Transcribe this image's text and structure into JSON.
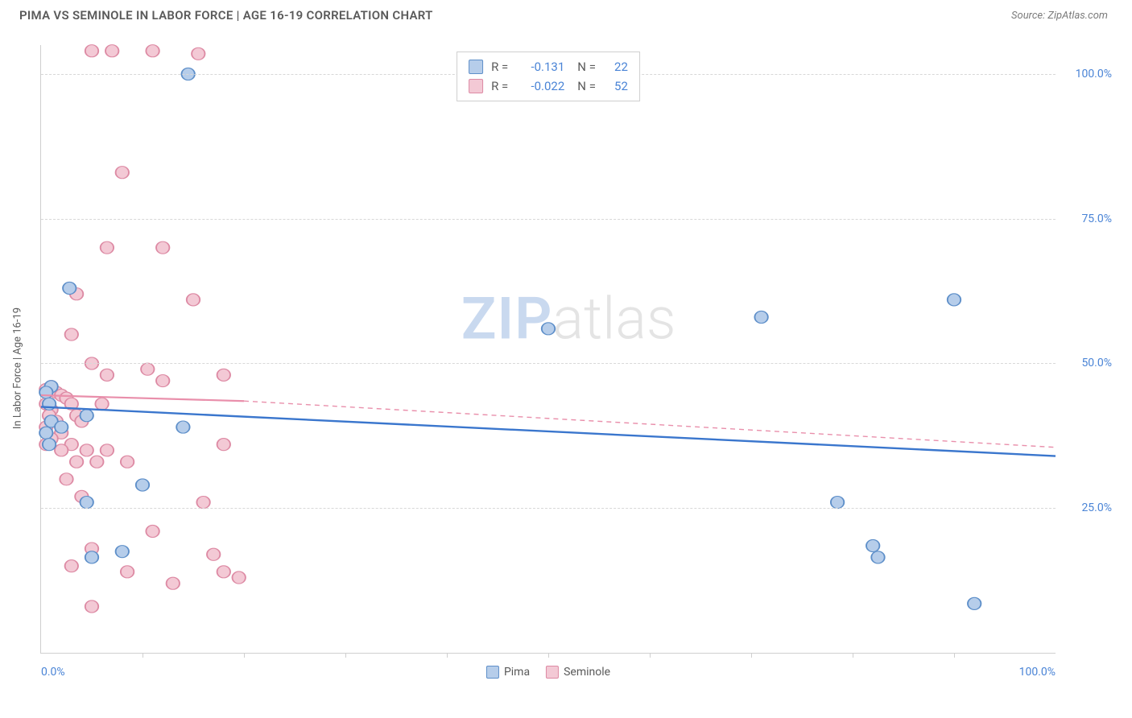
{
  "header": {
    "title": "PIMA VS SEMINOLE IN LABOR FORCE | AGE 16-19 CORRELATION CHART",
    "source": "Source: ZipAtlas.com"
  },
  "y_axis": {
    "label": "In Labor Force | Age 16-19"
  },
  "x_axis": {
    "min_label": "0.0%",
    "max_label": "100.0%"
  },
  "watermark": {
    "part1": "ZIP",
    "part2": "atlas"
  },
  "chart": {
    "type": "scatter",
    "xlim": [
      0,
      100
    ],
    "ylim": [
      0,
      105
    ],
    "y_ticks": [
      {
        "value": 25,
        "label": "25.0%"
      },
      {
        "value": 50,
        "label": "50.0%"
      },
      {
        "value": 75,
        "label": "75.0%"
      },
      {
        "value": 100,
        "label": "100.0%"
      }
    ],
    "x_tick_step": 10,
    "grid_color": "#d8d8d8",
    "background_color": "#ffffff",
    "marker_radius": 8,
    "marker_stroke_width": 1.2,
    "series": [
      {
        "name": "Pima",
        "fill_color": "#b6cdea",
        "stroke_color": "#5e8fc9",
        "stats": {
          "r_label": "R =",
          "r_value": "-0.131",
          "n_label": "N =",
          "n_value": "22"
        },
        "trend": {
          "color": "#3a76cd",
          "width": 2.4,
          "dash": "none",
          "x1": 0,
          "y1": 42.5,
          "x2": 100,
          "y2": 34
        },
        "points": [
          {
            "x": 14.5,
            "y": 100
          },
          {
            "x": 2.8,
            "y": 63
          },
          {
            "x": 1.0,
            "y": 46
          },
          {
            "x": 0.5,
            "y": 45
          },
          {
            "x": 0.8,
            "y": 43
          },
          {
            "x": 4.5,
            "y": 41
          },
          {
            "x": 1.0,
            "y": 40
          },
          {
            "x": 2.0,
            "y": 39
          },
          {
            "x": 0.5,
            "y": 38
          },
          {
            "x": 14.0,
            "y": 39
          },
          {
            "x": 0.8,
            "y": 36
          },
          {
            "x": 10.0,
            "y": 29
          },
          {
            "x": 4.5,
            "y": 26
          },
          {
            "x": 8.0,
            "y": 17.5
          },
          {
            "x": 5.0,
            "y": 16.5
          },
          {
            "x": 50.0,
            "y": 56
          },
          {
            "x": 71.0,
            "y": 58
          },
          {
            "x": 90.0,
            "y": 61
          },
          {
            "x": 78.5,
            "y": 26
          },
          {
            "x": 82.0,
            "y": 18.5
          },
          {
            "x": 82.5,
            "y": 16.5
          },
          {
            "x": 92.0,
            "y": 8.5
          }
        ]
      },
      {
        "name": "Seminole",
        "fill_color": "#f3c9d5",
        "stroke_color": "#dd8aa4",
        "stats": {
          "r_label": "R =",
          "r_value": "-0.022",
          "n_label": "N =",
          "n_value": "52"
        },
        "trend": {
          "color": "#e98fab",
          "width": 2.2,
          "dash": "none",
          "x1": 0,
          "y1": 44.5,
          "x2": 20,
          "y2": 43.5
        },
        "trend_ext": {
          "color": "#e98fab",
          "width": 1.4,
          "dash": "6,5",
          "x1": 20,
          "y1": 43.5,
          "x2": 100,
          "y2": 35.5
        },
        "points": [
          {
            "x": 5.0,
            "y": 104
          },
          {
            "x": 7.0,
            "y": 104
          },
          {
            "x": 11.0,
            "y": 104
          },
          {
            "x": 15.5,
            "y": 103.5
          },
          {
            "x": 8.0,
            "y": 83
          },
          {
            "x": 6.5,
            "y": 70
          },
          {
            "x": 12.0,
            "y": 70
          },
          {
            "x": 3.5,
            "y": 62
          },
          {
            "x": 15.0,
            "y": 61
          },
          {
            "x": 3.0,
            "y": 55
          },
          {
            "x": 5.0,
            "y": 50
          },
          {
            "x": 10.5,
            "y": 49
          },
          {
            "x": 6.5,
            "y": 48
          },
          {
            "x": 12.0,
            "y": 47
          },
          {
            "x": 18.0,
            "y": 48
          },
          {
            "x": 1.0,
            "y": 46
          },
          {
            "x": 1.5,
            "y": 45
          },
          {
            "x": 2.0,
            "y": 44.5
          },
          {
            "x": 2.5,
            "y": 44
          },
          {
            "x": 0.5,
            "y": 43
          },
          {
            "x": 3.0,
            "y": 43
          },
          {
            "x": 1.0,
            "y": 42
          },
          {
            "x": 6.0,
            "y": 43
          },
          {
            "x": 0.8,
            "y": 41
          },
          {
            "x": 3.5,
            "y": 41
          },
          {
            "x": 1.5,
            "y": 40
          },
          {
            "x": 0.5,
            "y": 39
          },
          {
            "x": 4.0,
            "y": 40
          },
          {
            "x": 2.0,
            "y": 38
          },
          {
            "x": 1.0,
            "y": 37
          },
          {
            "x": 0.5,
            "y": 36
          },
          {
            "x": 3.0,
            "y": 36
          },
          {
            "x": 2.0,
            "y": 35
          },
          {
            "x": 4.5,
            "y": 35
          },
          {
            "x": 6.5,
            "y": 35
          },
          {
            "x": 18.0,
            "y": 36
          },
          {
            "x": 3.5,
            "y": 33
          },
          {
            "x": 5.5,
            "y": 33
          },
          {
            "x": 8.5,
            "y": 33
          },
          {
            "x": 2.5,
            "y": 30
          },
          {
            "x": 4.0,
            "y": 27
          },
          {
            "x": 11.0,
            "y": 21
          },
          {
            "x": 16.0,
            "y": 26
          },
          {
            "x": 5.0,
            "y": 18
          },
          {
            "x": 3.0,
            "y": 15
          },
          {
            "x": 13.0,
            "y": 12
          },
          {
            "x": 8.5,
            "y": 14
          },
          {
            "x": 18.0,
            "y": 14
          },
          {
            "x": 17.0,
            "y": 17
          },
          {
            "x": 19.5,
            "y": 13
          },
          {
            "x": 5.0,
            "y": 8
          },
          {
            "x": 0.5,
            "y": 45.5
          }
        ]
      }
    ]
  }
}
